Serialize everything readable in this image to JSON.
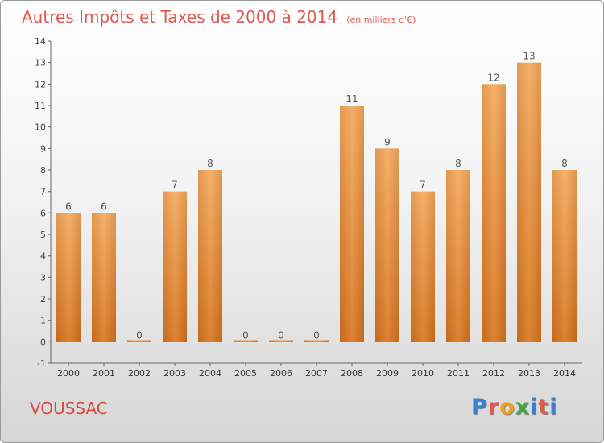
{
  "header": {
    "title": "Autres Impôts et Taxes de 2000 à 2014",
    "unit": "(en milliers d'€)"
  },
  "footer": {
    "commune": "VOUSSAC"
  },
  "logo": {
    "text": "Proxiti",
    "letter_colors": [
      "#3a7fd2",
      "#e0584f",
      "#f0a020",
      "#3ea83e",
      "#3a7fd2",
      "#e0584f",
      "#3a7fd2"
    ]
  },
  "colors": {
    "title": "#e0584f",
    "bar_top": "#f6a85a",
    "bar_bottom": "#d8741c",
    "axis": "#666666"
  },
  "chart_data": {
    "type": "bar",
    "title": "Autres Impôts et Taxes de 2000 à 2014",
    "subtitle": "(en milliers d'€)",
    "categories": [
      "2000",
      "2001",
      "2002",
      "2003",
      "2004",
      "2005",
      "2006",
      "2007",
      "2008",
      "2009",
      "2010",
      "2011",
      "2012",
      "2013",
      "2014"
    ],
    "values": [
      6,
      6,
      0,
      7,
      8,
      0,
      0,
      0,
      11,
      9,
      7,
      8,
      12,
      13,
      8
    ],
    "yticks": [
      -1,
      0,
      1,
      2,
      3,
      4,
      5,
      6,
      7,
      8,
      9,
      10,
      11,
      12,
      13,
      14
    ],
    "ylim": [
      -1,
      14
    ],
    "grid": false,
    "data_labels": true
  }
}
